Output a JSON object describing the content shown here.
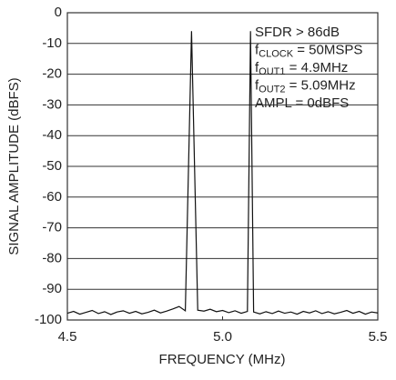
{
  "chart_data": {
    "type": "line",
    "xlabel": "FREQUENCY (MHz)",
    "ylabel": "SIGNAL AMPLITUDE (dBFS)",
    "xlim": [
      4.5,
      5.5
    ],
    "ylim": [
      -100,
      0
    ],
    "xticks": [
      4.5,
      {
        "value": 5,
        "label": "5.0"
      },
      5.5
    ],
    "yticks": [
      0,
      -10,
      -20,
      -30,
      -40,
      -50,
      -60,
      -70,
      -80,
      -90,
      -100
    ],
    "grid": true,
    "annotations": [
      {
        "text": "SFDR > 86dB"
      },
      {
        "text": "f",
        "sub": "CLOCK",
        "rest": " = 50MSPS"
      },
      {
        "text": "f",
        "sub": "OUT1",
        "rest": " = 4.9MHz"
      },
      {
        "text": "f",
        "sub": "OUT2",
        "rest": " = 5.09MHz"
      },
      {
        "text": "AMPL = 0dBFS"
      }
    ],
    "series": [
      {
        "color": "#111111",
        "x": [
          4.5,
          4.52,
          4.54,
          4.56,
          4.58,
          4.6,
          4.62,
          4.64,
          4.66,
          4.68,
          4.7,
          4.72,
          4.74,
          4.76,
          4.78,
          4.8,
          4.82,
          4.84,
          4.86,
          4.88,
          4.9,
          4.92,
          4.94,
          4.96,
          4.98,
          5.0,
          5.02,
          5.04,
          5.06,
          5.08,
          5.09,
          5.1,
          5.12,
          5.14,
          5.16,
          5.18,
          5.2,
          5.22,
          5.24,
          5.26,
          5.28,
          5.3,
          5.32,
          5.34,
          5.36,
          5.38,
          5.4,
          5.42,
          5.44,
          5.46,
          5.48,
          5.5
        ],
        "values": [
          -97.8,
          -97.2,
          -98.1,
          -97.5,
          -96.9,
          -97.9,
          -97.3,
          -98.2,
          -97.4,
          -97.0,
          -97.8,
          -97.2,
          -98.0,
          -97.5,
          -96.8,
          -97.7,
          -97.1,
          -96.4,
          -95.6,
          -97.0,
          -6,
          -96.8,
          -97.1,
          -96.5,
          -97.3,
          -96.9,
          -97.6,
          -97.0,
          -97.8,
          -97.2,
          -6,
          -97.4,
          -98.0,
          -97.3,
          -97.9,
          -97.1,
          -97.8,
          -97.4,
          -98.1,
          -97.2,
          -97.7,
          -97.0,
          -97.9,
          -97.3,
          -98.0,
          -97.5,
          -96.9,
          -97.8,
          -97.2,
          -98.1,
          -97.4,
          -97.7
        ]
      }
    ]
  }
}
